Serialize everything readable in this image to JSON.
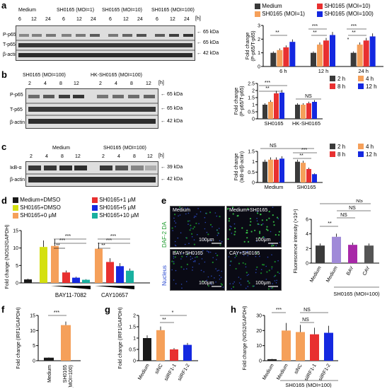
{
  "panel_letters": [
    "a",
    "b",
    "c",
    "d",
    "e",
    "f",
    "g",
    "h"
  ],
  "panel_a": {
    "groups": [
      "Medium",
      "SH0165 (MOI=1)",
      "SH0165 (MOI=10)",
      "SH0165 (MOI=100)"
    ],
    "timepoints": [
      "6",
      "12",
      "24",
      "6",
      "12",
      "24",
      "6",
      "12",
      "24",
      "6",
      "12",
      "24"
    ],
    "unit": "[h]",
    "rows": [
      "P-p65",
      "T-p65",
      "β-actin"
    ],
    "kda": [
      "65 kDa",
      "65 kDa",
      "42 kDa"
    ],
    "legend": [
      "Medium",
      "SH0165 (MOI=1)",
      "SH0165 (MOI=10)",
      "SH0165 (MOI=100)"
    ],
    "colors": [
      "#3a3a3a",
      "#f5a05a",
      "#e83030",
      "#1428e0"
    ]
  },
  "panel_b": {
    "groups": [
      "SH0165 (MOI=100)",
      "HK-SH0165 (MOI=100)"
    ],
    "timepoints": [
      "2",
      "4",
      "8",
      "12",
      "2",
      "4",
      "8",
      "12"
    ],
    "unit": "[h]",
    "rows": [
      "P-p65",
      "T-p65",
      "β-actin"
    ],
    "kda": [
      "65 kDa",
      "65 kDa",
      "42 kDa"
    ],
    "legend": [
      "2 h",
      "4 h",
      "8 h",
      "12 h"
    ],
    "colors": [
      "#3a3a3a",
      "#f5a05a",
      "#e83030",
      "#1428e0"
    ]
  },
  "panel_c": {
    "groups": [
      "Medium",
      "SH0165 (MOI=100)"
    ],
    "timepoints": [
      "2",
      "4",
      "8",
      "12",
      "2",
      "4",
      "8",
      "12"
    ],
    "unit": "[h]",
    "rows": [
      "IκB-α",
      "β-actin"
    ],
    "kda": [
      "39 kDa",
      "42 kDa"
    ],
    "legend": [
      "2 h",
      "4 h",
      "8 h",
      "12 h"
    ],
    "colors": [
      "#3a3a3a",
      "#f5a05a",
      "#e83030",
      "#1428e0"
    ]
  },
  "panel_d": {
    "legend": [
      "Medium+DMSO",
      "SH0165+DMSO",
      "SH0165+0 μM",
      "SH0165+1 μM",
      "SH0165+5 μM",
      "SH0165+10 μM"
    ],
    "colors": [
      "#1a1a1a",
      "#d4e010",
      "#f5a05a",
      "#e83030",
      "#1428e0",
      "#18b0a0"
    ],
    "inhibitors": [
      "BAY11-7082",
      "CAY10657"
    ]
  },
  "panel_e": {
    "images": [
      "Medium",
      "Medium+SH0165",
      "BAY+SH0165",
      "CAY+SH0165"
    ],
    "scale": "100μm",
    "side_labels": [
      "DAF-2 DA",
      "Nucleus"
    ],
    "chart_x": [
      "Medium",
      "Medium",
      "BAY",
      "CAY"
    ],
    "chart_caption": "SH0165 (MOI=100)",
    "colors": [
      "#3a3a3a",
      "#a08ad8",
      "#a828a8",
      "#555555"
    ]
  },
  "panel_f": {
    "categories": [
      "Medium",
      "SH0165\n(MOI=100)"
    ],
    "colors": [
      "#1a1a1a",
      "#f5a05a"
    ]
  },
  "panel_g": {
    "categories": [
      "Medium",
      "siNC",
      "siIRF1-1",
      "siIRF1-2"
    ],
    "colors": [
      "#1a1a1a",
      "#f5a05a",
      "#e83030",
      "#1428e0"
    ]
  },
  "panel_h": {
    "categories": [
      "Medium",
      "Medium",
      "siNC",
      "siIRF1-1",
      "siIRF1-2"
    ],
    "caption": "SH0165 (MOI=100)",
    "colors": [
      "#1a1a1a",
      "#f5a05a",
      "#f5a05a",
      "#e83030",
      "#1428e0"
    ]
  },
  "chart_data": [
    {
      "type": "bar",
      "panel": "a",
      "categories": [
        "6 h",
        "12 h",
        "24 h"
      ],
      "ylabel": "Fold change\n(P-p65/T-p65)",
      "ylim": [
        0,
        3
      ],
      "yticks": [
        0,
        1,
        2,
        3
      ],
      "series": [
        {
          "name": "Medium",
          "values": [
            1.0,
            1.0,
            1.0
          ]
        },
        {
          "name": "SH0165 (MOI=1)",
          "values": [
            1.2,
            1.6,
            1.6
          ]
        },
        {
          "name": "SH0165 (MOI=10)",
          "values": [
            1.4,
            1.9,
            1.9
          ]
        },
        {
          "name": "SH0165 (MOI=100)",
          "values": [
            1.8,
            2.3,
            2.2
          ]
        }
      ],
      "annotations": [
        "**",
        "***",
        "**",
        "***",
        "*",
        "**",
        "***"
      ]
    },
    {
      "type": "bar",
      "panel": "b",
      "categories": [
        "SH0165",
        "HK-SH0165"
      ],
      "ylabel": "Fold change\n(P-p65/T-p65)",
      "ylim": [
        0,
        2.5
      ],
      "yticks": [
        0.0,
        0.5,
        1.0,
        1.5,
        2.0,
        2.5
      ],
      "series": [
        {
          "name": "2 h",
          "values": [
            1.0,
            1.0
          ]
        },
        {
          "name": "4 h",
          "values": [
            1.2,
            1.0
          ]
        },
        {
          "name": "8 h",
          "values": [
            1.8,
            1.1
          ]
        },
        {
          "name": "12 h",
          "values": [
            1.85,
            1.2
          ]
        }
      ],
      "annotations": [
        "***",
        "***",
        "**",
        "NS"
      ]
    },
    {
      "type": "bar",
      "panel": "c",
      "categories": [
        "Medium",
        "SH0165"
      ],
      "ylabel": "Fold change\n(IκB-α/β-actin)",
      "ylim": [
        0,
        1.5
      ],
      "yticks": [
        0.0,
        0.5,
        1.0,
        1.5
      ],
      "series": [
        {
          "name": "2 h",
          "values": [
            1.0,
            1.0
          ]
        },
        {
          "name": "4 h",
          "values": [
            1.1,
            0.95
          ]
        },
        {
          "name": "8 h",
          "values": [
            1.1,
            0.65
          ]
        },
        {
          "name": "12 h",
          "values": [
            1.15,
            0.4
          ]
        }
      ],
      "annotations": [
        "NS",
        "**",
        "***"
      ]
    },
    {
      "type": "bar",
      "panel": "d",
      "ylabel": "Fold change (NOS2/GAPDH)",
      "ylim": [
        0,
        15
      ],
      "yticks": [
        0,
        5,
        10,
        15
      ],
      "categories": [
        "Medium+DMSO",
        "SH0165+DMSO",
        "SH0165+0 μM",
        "SH0165+1 μM",
        "SH0165+5 μM",
        "SH0165+10 μM",
        "SH0165+0 μM",
        "SH0165+1 μM",
        "SH0165+5 μM",
        "SH0165+10 μM"
      ],
      "values": [
        1.0,
        10.3,
        10.6,
        3.0,
        1.5,
        0.9,
        9.8,
        6.0,
        4.8,
        3.5
      ],
      "annotations": [
        "***",
        "***",
        "***",
        "***",
        "***",
        "**"
      ]
    },
    {
      "type": "bar",
      "panel": "e",
      "ylabel": "Fluorescence intensity (×10⁴)",
      "ylim": [
        0,
        6
      ],
      "yticks": [
        0,
        2,
        4,
        6
      ],
      "categories": [
        "Medium",
        "Medium",
        "BAY",
        "CAY"
      ],
      "values": [
        2.4,
        3.6,
        2.5,
        2.4
      ],
      "annotations": [
        "**",
        "NS",
        "NS",
        "NS"
      ]
    },
    {
      "type": "bar",
      "panel": "f",
      "ylabel": "Fold change (IRF1/GAPDH)",
      "ylim": [
        0,
        15
      ],
      "yticks": [
        0,
        5,
        10,
        15
      ],
      "categories": [
        "Medium",
        "SH0165 (MOI=100)"
      ],
      "values": [
        1.0,
        11.8
      ],
      "annotations": [
        "***"
      ]
    },
    {
      "type": "bar",
      "panel": "g",
      "ylabel": "Fold change (IRF1/GAPDH)",
      "ylim": [
        0,
        2.0
      ],
      "yticks": [
        0.0,
        0.5,
        1.0,
        1.5,
        2.0
      ],
      "categories": [
        "Medium",
        "siNC",
        "siIRF1-1",
        "siIRF1-2"
      ],
      "values": [
        1.0,
        1.35,
        0.5,
        0.7
      ],
      "annotations": [
        "**",
        "*"
      ]
    },
    {
      "type": "bar",
      "panel": "h",
      "ylabel": "Fold change (NOS2/GAPDH)",
      "ylim": [
        0,
        30
      ],
      "yticks": [
        0,
        10,
        20,
        30
      ],
      "categories": [
        "Medium",
        "Medium",
        "siNC",
        "siIRF1-1",
        "siIRF1-2"
      ],
      "values": [
        1.0,
        20.0,
        19.0,
        17.5,
        18.5
      ],
      "annotations": [
        "***",
        "NS",
        "NS"
      ]
    }
  ]
}
